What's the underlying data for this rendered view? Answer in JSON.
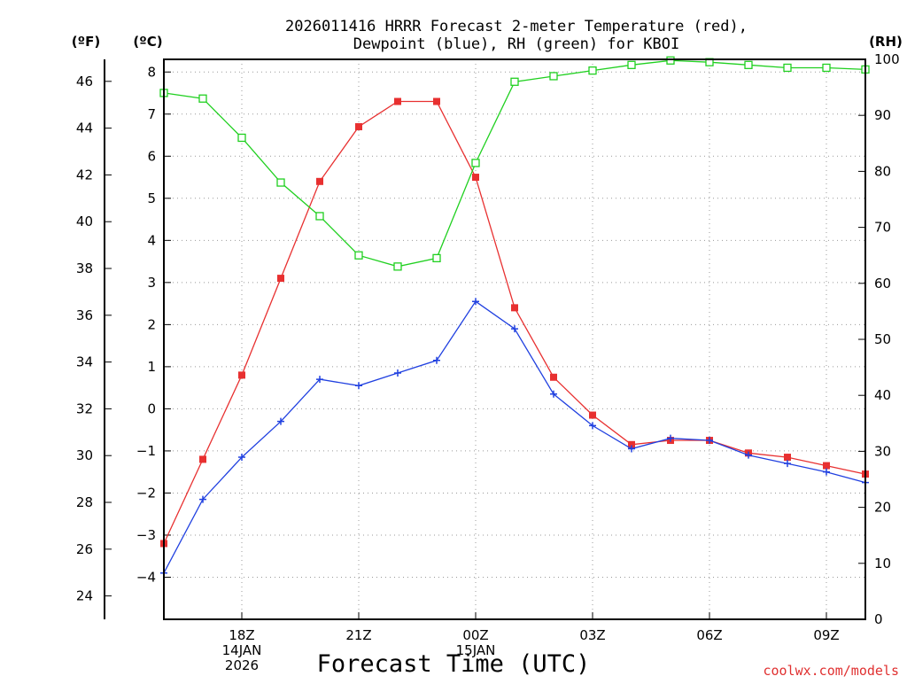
{
  "chart_data": {
    "type": "line",
    "title_line1": "2026011416 HRRR Forecast 2-meter Temperature (red),",
    "title_line2": "Dewpoint (blue), RH (green) for KBOI",
    "xlabel": "Forecast Time (UTC)",
    "credit": "coolwx.com/models",
    "units": {
      "fahrenheit": "(ºF)",
      "celsius": "(ºC)",
      "rh": "(RH)"
    },
    "x_hours": [
      0,
      1,
      2,
      3,
      4,
      5,
      6,
      7,
      8,
      9,
      10,
      11,
      12,
      13,
      14,
      15,
      16,
      17,
      18
    ],
    "x_range": [
      0,
      18
    ],
    "x_ticks": [
      {
        "hour": 2,
        "lines": [
          "18Z",
          "14JAN",
          "2026"
        ]
      },
      {
        "hour": 5,
        "lines": [
          "21Z"
        ]
      },
      {
        "hour": 8,
        "lines": [
          "00Z",
          "15JAN"
        ]
      },
      {
        "hour": 11,
        "lines": [
          "03Z"
        ]
      },
      {
        "hour": 14,
        "lines": [
          "06Z"
        ]
      },
      {
        "hour": 17,
        "lines": [
          "09Z"
        ]
      }
    ],
    "celsius_range": [
      -5,
      8.3
    ],
    "celsius_ticks": [
      8,
      7,
      6,
      5,
      4,
      3,
      2,
      1,
      0,
      -1,
      -2,
      -3,
      -4
    ],
    "fahrenheit_ticks": [
      46,
      44,
      42,
      40,
      38,
      36,
      34,
      32,
      30,
      28,
      26,
      24
    ],
    "rh_range": [
      0,
      100
    ],
    "rh_ticks": [
      100,
      90,
      80,
      70,
      60,
      50,
      40,
      30,
      20,
      10,
      0
    ],
    "series": [
      {
        "name": "Temperature",
        "axis": "celsius",
        "color": "#e83030",
        "marker": "filled-square",
        "values": [
          -3.2,
          -1.2,
          0.8,
          3.1,
          5.4,
          6.7,
          7.3,
          7.3,
          5.5,
          2.4,
          0.75,
          -0.15,
          -0.85,
          -0.75,
          -0.75,
          -1.05,
          -1.15,
          -1.35,
          -1.55
        ]
      },
      {
        "name": "Dewpoint",
        "axis": "celsius",
        "color": "#2040e0",
        "marker": "plus",
        "values": [
          -3.9,
          -2.15,
          -1.15,
          -0.3,
          0.7,
          0.55,
          0.85,
          1.15,
          2.55,
          1.9,
          0.35,
          -0.4,
          -0.95,
          -0.7,
          -0.75,
          -1.1,
          -1.3,
          -1.5,
          -1.75
        ]
      },
      {
        "name": "RH",
        "axis": "rh",
        "color": "#20d020",
        "marker": "open-square",
        "values": [
          94,
          93,
          86,
          78,
          72,
          65,
          63,
          64.5,
          81.5,
          96,
          97,
          98,
          99,
          99.8,
          99.5,
          99,
          98.5,
          98.5,
          98.2
        ]
      }
    ]
  }
}
